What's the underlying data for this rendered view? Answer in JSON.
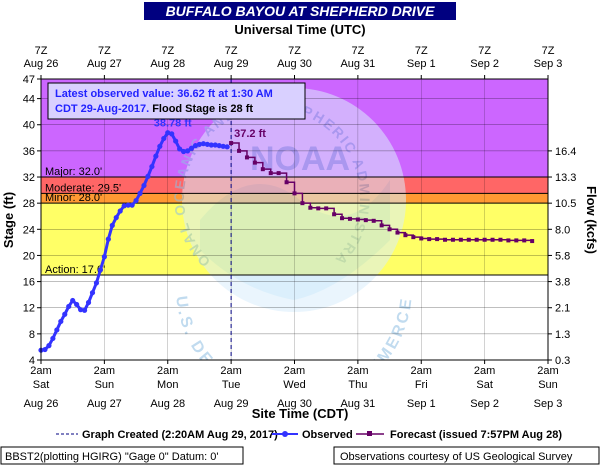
{
  "title": "BUFFALO BAYOU AT SHEPHERD DRIVE",
  "top_axis_title": "Universal Time (UTC)",
  "bottom_axis_title": "Site Time (CDT)",
  "left_axis_title": "Stage (ft)",
  "right_axis_title": "Flow (kcfs)",
  "info_box": {
    "line1": "Latest observed value: 36.62 ft at 1:30 AM",
    "line2_date": "CDT 29-Aug-2017.",
    "line2_rest": " Flood Stage is 28 ft"
  },
  "legend": {
    "graph_created": "Graph Created (2:20AM Aug 29, 2017)",
    "observed": "Observed",
    "forecast": "Forecast (issued 7:57PM Aug 28)"
  },
  "footer": {
    "left": "BBST2(plotting HGIRG) \"Gage 0\" Datum: 0'",
    "right": "Observations courtesy of US Geological Survey"
  },
  "watermark": "NATIONAL OCEANIC AND ATMOSPHERIC ADMINISTRATION · NOAA · U.S. DEPARTMENT OF COMMERCE",
  "colors": {
    "major": "#cc66ff",
    "moderate": "#ff6666",
    "minor": "#ff9933",
    "action": "#ffff66",
    "observed": "#3333ff",
    "forecast": "#660066"
  },
  "chart_data": {
    "type": "line",
    "title": "BUFFALO BAYOU AT SHEPHERD DRIVE",
    "x_unit": "hours since 2am Aug 26 CDT",
    "xlim": [
      0,
      192
    ],
    "ylim": [
      4,
      47
    ],
    "yticks": [
      4,
      8,
      12,
      16,
      20,
      24,
      28,
      32,
      36,
      40,
      44,
      47
    ],
    "flow_ticks": [
      {
        "stage": 4,
        "label": "0.3"
      },
      {
        "stage": 8,
        "label": "1.3"
      },
      {
        "stage": 12,
        "label": "2.1"
      },
      {
        "stage": 16,
        "label": "3.8"
      },
      {
        "stage": 20,
        "label": "5.8"
      },
      {
        "stage": 24,
        "label": "8.0"
      },
      {
        "stage": 28,
        "label": "10.5"
      },
      {
        "stage": 32,
        "label": "13.3"
      },
      {
        "stage": 36,
        "label": "16.4"
      }
    ],
    "bottom_ticks": [
      {
        "x": 0,
        "time": "2am",
        "day": "Sat",
        "date": "Aug 26"
      },
      {
        "x": 24,
        "time": "2am",
        "day": "Sun",
        "date": "Aug 27"
      },
      {
        "x": 48,
        "time": "2am",
        "day": "Mon",
        "date": "Aug 28"
      },
      {
        "x": 72,
        "time": "2am",
        "day": "Tue",
        "date": "Aug 29"
      },
      {
        "x": 96,
        "time": "2am",
        "day": "Wed",
        "date": "Aug 30"
      },
      {
        "x": 120,
        "time": "2am",
        "day": "Thu",
        "date": "Aug 31"
      },
      {
        "x": 144,
        "time": "2am",
        "day": "Fri",
        "date": "Sep 1"
      },
      {
        "x": 168,
        "time": "2am",
        "day": "Sat",
        "date": "Sep 2"
      },
      {
        "x": 192,
        "time": "2am",
        "day": "Sun",
        "date": "Sep 3"
      }
    ],
    "top_ticks": [
      {
        "x": 0,
        "time": "7Z",
        "date": "Aug 26"
      },
      {
        "x": 24,
        "time": "7Z",
        "date": "Aug 27"
      },
      {
        "x": 48,
        "time": "7Z",
        "date": "Aug 28"
      },
      {
        "x": 72,
        "time": "7Z",
        "date": "Aug 29"
      },
      {
        "x": 96,
        "time": "7Z",
        "date": "Aug 30"
      },
      {
        "x": 120,
        "time": "7Z",
        "date": "Aug 31"
      },
      {
        "x": 144,
        "time": "7Z",
        "date": "Sep 1"
      },
      {
        "x": 168,
        "time": "7Z",
        "date": "Sep 2"
      },
      {
        "x": 192,
        "time": "7Z",
        "date": "Sep 3"
      }
    ],
    "flood_categories": [
      {
        "name": "Major",
        "label": "Major: 32.0'",
        "from": 32,
        "to": 47
      },
      {
        "name": "Moderate",
        "label": "Moderate: 29.5'",
        "from": 29.5,
        "to": 32
      },
      {
        "name": "Minor",
        "label": "Minor: 28.0'",
        "from": 28,
        "to": 29.5
      },
      {
        "name": "Action",
        "label": "Action: 17.0'",
        "from": 17,
        "to": 28
      }
    ],
    "graph_created_x": 72,
    "observed": {
      "name": "Observed",
      "peak_label": "38.78 ft",
      "peak_x": 48,
      "peak_y": 38.78,
      "points": [
        [
          0,
          5.5
        ],
        [
          1.5,
          5.6
        ],
        [
          3,
          6.2
        ],
        [
          4.5,
          7.3
        ],
        [
          6,
          8.6
        ],
        [
          7.5,
          9.9
        ],
        [
          9,
          11.0
        ],
        [
          10.5,
          12.2
        ],
        [
          12,
          13.1
        ],
        [
          13.5,
          12.5
        ],
        [
          15,
          11.7
        ],
        [
          16.5,
          11.6
        ],
        [
          18,
          12.8
        ],
        [
          19.5,
          14.3
        ],
        [
          21,
          15.8
        ],
        [
          22.5,
          17.8
        ],
        [
          24,
          19.8
        ],
        [
          25.5,
          22.5
        ],
        [
          27,
          24.6
        ],
        [
          28.5,
          25.8
        ],
        [
          30,
          26.8
        ],
        [
          31.5,
          27.6
        ],
        [
          33,
          27.7
        ],
        [
          34.5,
          27.7
        ],
        [
          36,
          28.4
        ],
        [
          37.5,
          29.5
        ],
        [
          39,
          30.7
        ],
        [
          40.5,
          32.1
        ],
        [
          42,
          33.6
        ],
        [
          43.5,
          35.2
        ],
        [
          45,
          36.7
        ],
        [
          46.5,
          37.9
        ],
        [
          48,
          38.78
        ],
        [
          49.5,
          38.6
        ],
        [
          51,
          37.5
        ],
        [
          52.5,
          36.3
        ],
        [
          54,
          35.9
        ],
        [
          55.5,
          36.0
        ],
        [
          57,
          36.4
        ],
        [
          58.5,
          36.8
        ],
        [
          60,
          37.0
        ],
        [
          61.5,
          37.1
        ],
        [
          63,
          37.0
        ],
        [
          64.5,
          36.9
        ],
        [
          66,
          36.9
        ],
        [
          67.5,
          36.8
        ],
        [
          69,
          36.7
        ],
        [
          70.5,
          36.62
        ]
      ]
    },
    "forecast": {
      "name": "Forecast (issued 7:57PM Aug 28)",
      "start_label": "37.2 ft",
      "points": [
        [
          72,
          37.2
        ],
        [
          75,
          36.0
        ],
        [
          78,
          35.0
        ],
        [
          81,
          34.2
        ],
        [
          84,
          33.2
        ],
        [
          87,
          32.6
        ],
        [
          90,
          32.6
        ],
        [
          93,
          31.2
        ],
        [
          96,
          29.5
        ],
        [
          99,
          28.0
        ],
        [
          102,
          27.3
        ],
        [
          105,
          27.2
        ],
        [
          108,
          27.2
        ],
        [
          111,
          26.3
        ],
        [
          114,
          25.7
        ],
        [
          117,
          25.6
        ],
        [
          120,
          25.5
        ],
        [
          123,
          25.4
        ],
        [
          126,
          25.3
        ],
        [
          129,
          24.6
        ],
        [
          132,
          24.0
        ],
        [
          135,
          23.5
        ],
        [
          138,
          23.1
        ],
        [
          141,
          22.8
        ],
        [
          144,
          22.6
        ],
        [
          147,
          22.5
        ],
        [
          150,
          22.5
        ],
        [
          153,
          22.4
        ],
        [
          156,
          22.4
        ],
        [
          159,
          22.4
        ],
        [
          162,
          22.4
        ],
        [
          165,
          22.4
        ],
        [
          168,
          22.4
        ],
        [
          171,
          22.4
        ],
        [
          174,
          22.4
        ],
        [
          177,
          22.3
        ],
        [
          180,
          22.3
        ],
        [
          183,
          22.3
        ],
        [
          186,
          22.2
        ]
      ]
    }
  }
}
